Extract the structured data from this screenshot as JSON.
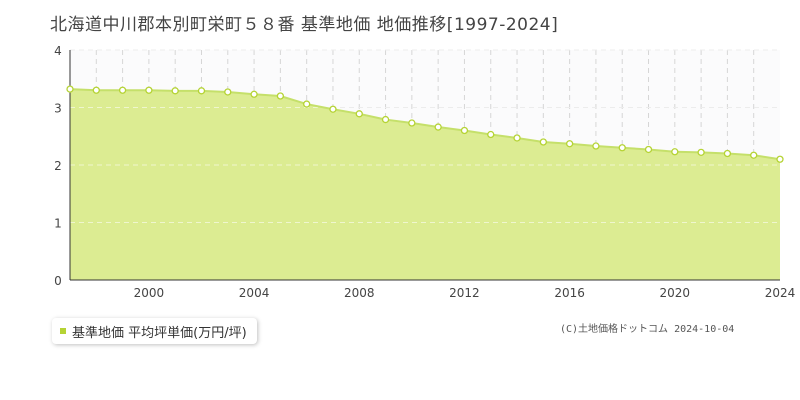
{
  "header": {
    "title": "北海道中川郡本別町栄町５８番 基準地価 地価推移[1997-2024]"
  },
  "legend": {
    "label": "基準地価 平均坪単価(万円/坪)"
  },
  "footer": {
    "copyright": "(C)土地価格ドットコム 2024-10-04"
  },
  "colors": {
    "fill": "#dcec92",
    "line": "#c5e06a",
    "marker_stroke": "#b5d334",
    "marker_fill": "#ffffff"
  },
  "chart_data": {
    "type": "area",
    "title": "北海道中川郡本別町栄町５８番 基準地価 地価推移[1997-2024]",
    "xlabel": "",
    "ylabel": "",
    "xlim": [
      1997,
      2024
    ],
    "ylim": [
      0,
      4
    ],
    "x_ticks": [
      2000,
      2004,
      2008,
      2012,
      2016,
      2020,
      2024
    ],
    "y_ticks": [
      0,
      1,
      2,
      3,
      4
    ],
    "grid": true,
    "legend_position": "bottom-left",
    "series": [
      {
        "name": "基準地価 平均坪単価(万円/坪)",
        "x": [
          1997,
          1998,
          1999,
          2000,
          2001,
          2002,
          2003,
          2004,
          2005,
          2006,
          2007,
          2008,
          2009,
          2010,
          2011,
          2012,
          2013,
          2014,
          2015,
          2016,
          2017,
          2018,
          2019,
          2020,
          2021,
          2022,
          2023,
          2024
        ],
        "values": [
          3.32,
          3.3,
          3.3,
          3.3,
          3.29,
          3.29,
          3.27,
          3.23,
          3.2,
          3.06,
          2.97,
          2.89,
          2.79,
          2.73,
          2.66,
          2.6,
          2.53,
          2.47,
          2.4,
          2.37,
          2.33,
          2.3,
          2.27,
          2.23,
          2.22,
          2.2,
          2.17,
          2.1
        ]
      }
    ]
  }
}
